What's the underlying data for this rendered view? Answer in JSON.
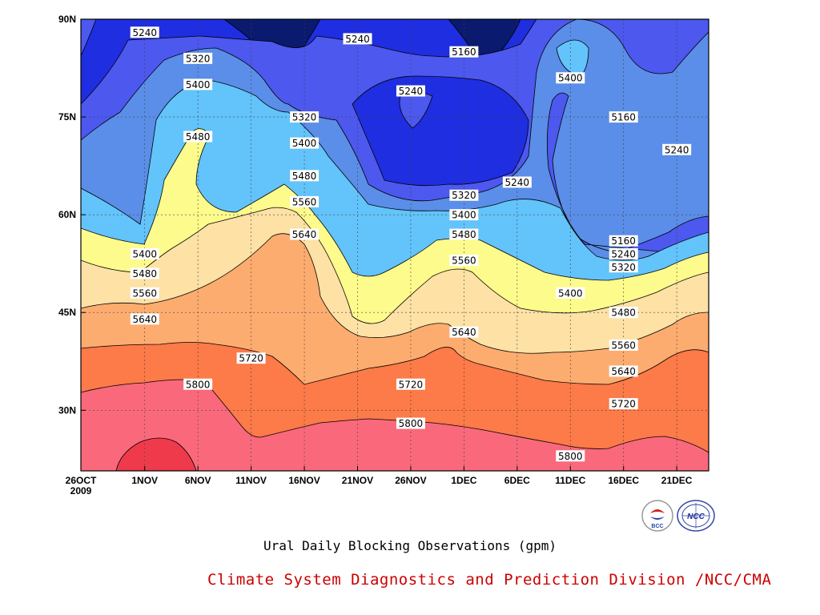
{
  "chart_data": {
    "type": "contour",
    "title": "Ural Daily Blocking Observations (gpm)",
    "credit": "Climate System Diagnostics and Prediction Division /NCC/CMA",
    "x_ticks": [
      "26OCT\n2009",
      "1NOV",
      "6NOV",
      "11NOV",
      "16NOV",
      "21NOV",
      "26NOV",
      "1DEC",
      "6DEC",
      "11DEC",
      "16DEC",
      "21DEC"
    ],
    "y_ticks": [
      "90N",
      "75N",
      "60N",
      "45N",
      "30N"
    ],
    "contour_levels": [
      5160,
      5240,
      5320,
      5400,
      5480,
      5560,
      5640,
      5720,
      5800,
      5880
    ],
    "grid": true,
    "labels": [
      {
        "text": "5240",
        "x": "1NOV",
        "y": "88N"
      },
      {
        "text": "5240",
        "x": "21NOV",
        "y": "87N"
      },
      {
        "text": "5160",
        "x": "1DEC",
        "y": "85N"
      },
      {
        "text": "5320",
        "x": "6NOV",
        "y": "84N"
      },
      {
        "text": "5400",
        "x": "11DEC",
        "y": "81N"
      },
      {
        "text": "5400",
        "x": "6NOV",
        "y": "80N"
      },
      {
        "text": "5240",
        "x": "26NOV",
        "y": "79N"
      },
      {
        "text": "5320",
        "x": "16NOV",
        "y": "75N"
      },
      {
        "text": "5160",
        "x": "16DEC",
        "y": "75N"
      },
      {
        "text": "5480",
        "x": "6NOV",
        "y": "72N"
      },
      {
        "text": "5400",
        "x": "16NOV",
        "y": "71N"
      },
      {
        "text": "5240",
        "x": "21DEC",
        "y": "70N"
      },
      {
        "text": "5480",
        "x": "16NOV",
        "y": "66N"
      },
      {
        "text": "5240",
        "x": "6DEC",
        "y": "65N"
      },
      {
        "text": "5320",
        "x": "1DEC",
        "y": "63N"
      },
      {
        "text": "5560",
        "x": "16NOV",
        "y": "62N"
      },
      {
        "text": "5400",
        "x": "1DEC",
        "y": "60N"
      },
      {
        "text": "5640",
        "x": "16NOV",
        "y": "57N"
      },
      {
        "text": "5480",
        "x": "1DEC",
        "y": "57N"
      },
      {
        "text": "5160",
        "x": "16DEC",
        "y": "56N"
      },
      {
        "text": "5240",
        "x": "16DEC",
        "y": "54N"
      },
      {
        "text": "5400",
        "x": "1NOV",
        "y": "54N"
      },
      {
        "text": "5560",
        "x": "1DEC",
        "y": "53N"
      },
      {
        "text": "5320",
        "x": "16DEC",
        "y": "52N"
      },
      {
        "text": "5480",
        "x": "1NOV",
        "y": "51N"
      },
      {
        "text": "5560",
        "x": "1NOV",
        "y": "48N"
      },
      {
        "text": "5400",
        "x": "11DEC",
        "y": "48N"
      },
      {
        "text": "5480",
        "x": "16DEC",
        "y": "45N"
      },
      {
        "text": "5640",
        "x": "1NOV",
        "y": "44N"
      },
      {
        "text": "5640",
        "x": "1DEC",
        "y": "42N"
      },
      {
        "text": "5560",
        "x": "16DEC",
        "y": "40N"
      },
      {
        "text": "5720",
        "x": "11NOV",
        "y": "38N"
      },
      {
        "text": "5640",
        "x": "16DEC",
        "y": "36N"
      },
      {
        "text": "5800",
        "x": "6NOV",
        "y": "34N"
      },
      {
        "text": "5720",
        "x": "26NOV",
        "y": "34N"
      },
      {
        "text": "5720",
        "x": "16DEC",
        "y": "31N"
      },
      {
        "text": "5800",
        "x": "26NOV",
        "y": "28N"
      },
      {
        "text": "5800",
        "x": "11DEC",
        "y": "23N"
      }
    ],
    "colors": [
      "#0a1a6e",
      "#1f2ee0",
      "#4c58ee",
      "#5a8ee8",
      "#63c3fb",
      "#fdfb8c",
      "#fde1a5",
      "#fdac6f",
      "#fd7a49",
      "#f9697b",
      "#ef3a4c"
    ]
  },
  "logos": {
    "left": "bcc-logo-icon",
    "right": "ncc-logo-icon"
  }
}
